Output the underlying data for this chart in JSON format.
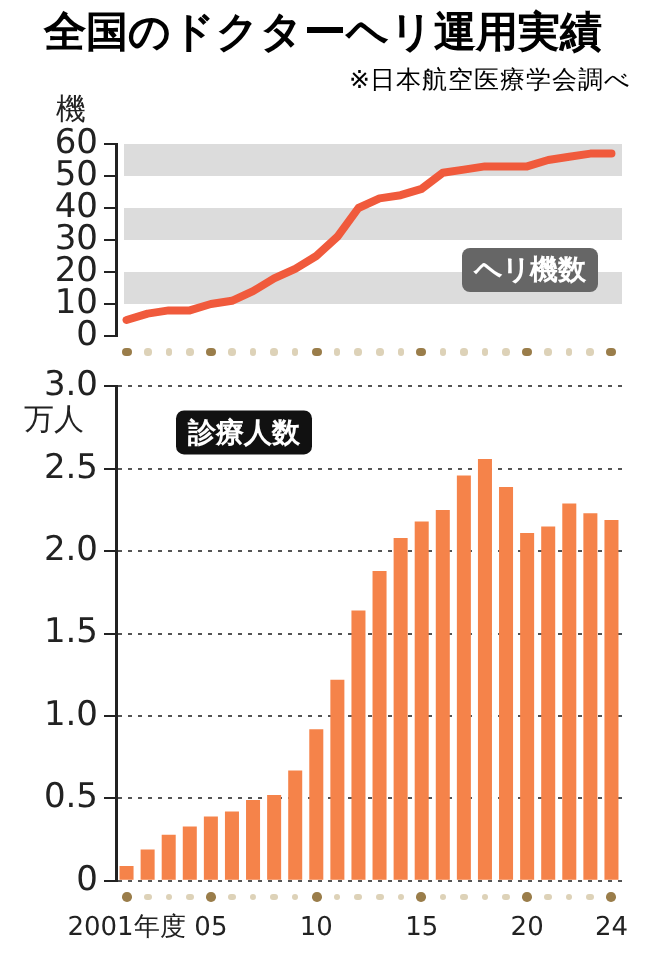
{
  "chart_data": [
    {
      "type": "line",
      "title": "全国のドクターヘリ運用実績",
      "subtitle": "※日本航空医療学会調べ",
      "ylabel": "機",
      "annotations": [
        "ヘリ機数"
      ],
      "categories": [
        null,
        null,
        null,
        null,
        null,
        null,
        null,
        null,
        null,
        null,
        null,
        null,
        null,
        null,
        null,
        null,
        null,
        null,
        null,
        null,
        null,
        null,
        null,
        null
      ],
      "series": [
        {
          "color": "#f05a3c",
          "values": [
            5,
            7,
            8,
            8,
            10,
            11,
            14,
            18,
            21,
            25,
            31,
            40,
            43,
            44,
            46,
            51,
            52,
            53,
            53,
            53,
            55,
            56,
            57,
            57
          ]
        }
      ],
      "ylim": [
        0,
        60
      ],
      "yticks": [
        0,
        10,
        20,
        30,
        40,
        50,
        60
      ],
      "grid": false,
      "legend": false,
      "tick_labels": "y",
      "marker": "none",
      "line_style": "solid",
      "bands": [
        {
          "axis": "y",
          "from": 10,
          "to": 20,
          "color": "#dcdcdc"
        },
        {
          "axis": "y",
          "from": 30,
          "to": 40,
          "color": "#dcdcdc"
        },
        {
          "axis": "y",
          "from": 50,
          "to": 60,
          "color": "#dcdcdc"
        }
      ]
    },
    {
      "type": "bar",
      "ylabel": "万人",
      "annotations": [
        "診療人数"
      ],
      "categories": [
        "2001年度",
        null,
        null,
        null,
        "05",
        null,
        null,
        null,
        null,
        "10",
        null,
        null,
        null,
        null,
        "15",
        null,
        null,
        null,
        null,
        "20",
        null,
        null,
        null,
        "24"
      ],
      "series": [
        {
          "color": "#f5834a",
          "values": [
            0.09,
            0.19,
            0.28,
            0.33,
            0.39,
            0.42,
            0.49,
            0.52,
            0.67,
            0.92,
            1.22,
            1.64,
            1.88,
            2.08,
            2.18,
            2.25,
            2.46,
            2.56,
            2.39,
            2.11,
            2.15,
            2.29,
            2.23,
            2.19
          ]
        }
      ],
      "ylim": [
        0,
        3
      ],
      "yticks": [
        0,
        0.5,
        {
          "value": 1,
          "label": "1.0"
        },
        1.5,
        {
          "value": 2,
          "label": "2.0"
        },
        2.5,
        {
          "value": 3,
          "label": "3.0"
        }
      ],
      "grid": "y",
      "legend": false
    }
  ]
}
